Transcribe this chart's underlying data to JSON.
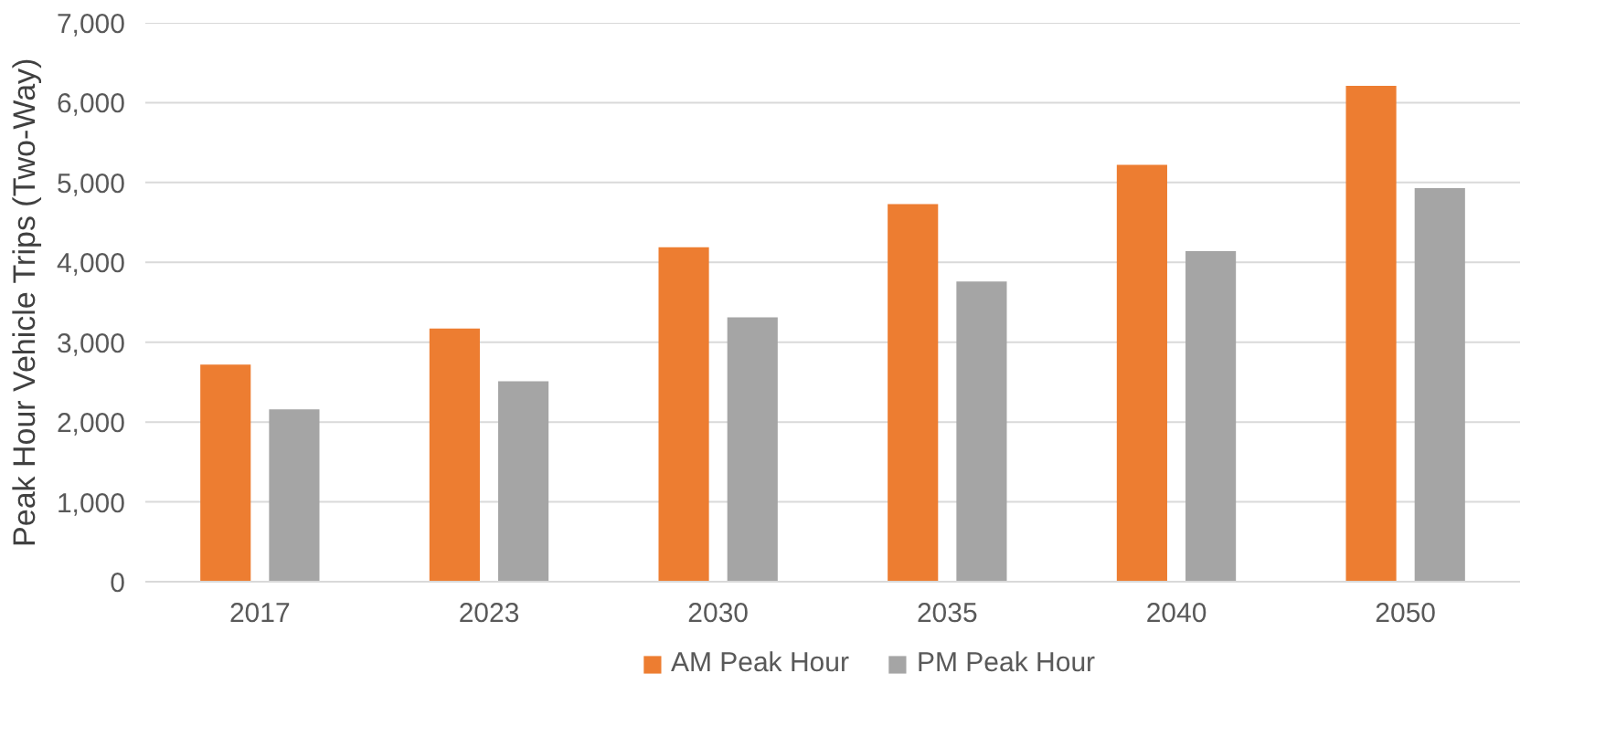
{
  "chart_data": {
    "type": "bar",
    "ylabel": "Peak Hour Vehicle Trips (Two-Way)",
    "categories": [
      "2017",
      "2023",
      "2030",
      "2035",
      "2040",
      "2050"
    ],
    "series": [
      {
        "name": "AM Peak Hour",
        "color": "#ed7d31",
        "values": [
          2720,
          3170,
          4190,
          4730,
          5220,
          6210
        ]
      },
      {
        "name": "PM Peak Hour",
        "color": "#a5a5a5",
        "values": [
          2160,
          2510,
          3310,
          3760,
          4140,
          4930
        ]
      }
    ],
    "ylim": [
      0,
      7000
    ],
    "yticks": [
      {
        "value": 0,
        "label": "0"
      },
      {
        "value": 1000,
        "label": "1,000"
      },
      {
        "value": 2000,
        "label": "2,000"
      },
      {
        "value": 3000,
        "label": "3,000"
      },
      {
        "value": 4000,
        "label": "4,000"
      },
      {
        "value": 5000,
        "label": "5,000"
      },
      {
        "value": 6000,
        "label": "6,000"
      },
      {
        "value": 7000,
        "label": "7,000"
      }
    ],
    "grid": "y",
    "legend": "bottom"
  }
}
